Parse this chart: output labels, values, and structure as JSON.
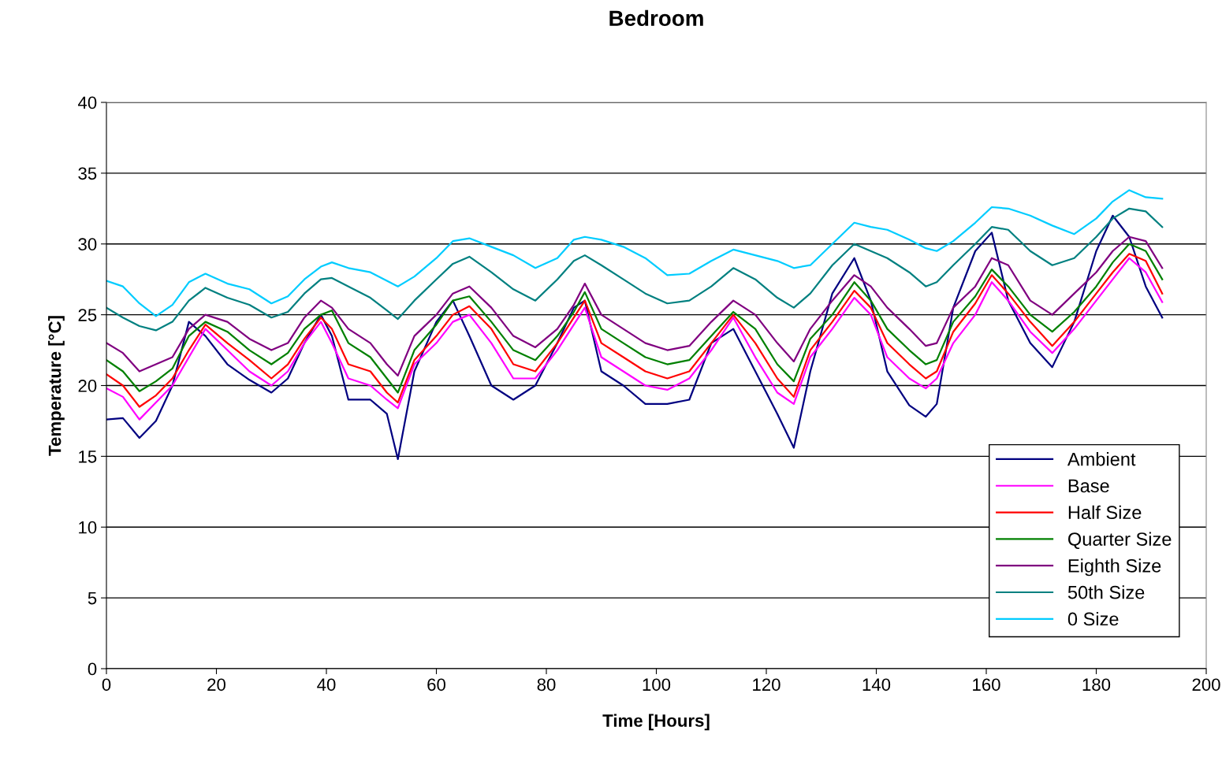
{
  "chart_data": {
    "type": "line",
    "title": "Bedroom",
    "xlabel": "Time [Hours]",
    "ylabel": "Temperature [°C]",
    "x": [
      0,
      3,
      6,
      9,
      12,
      15,
      18,
      22,
      26,
      30,
      33,
      36,
      39,
      41,
      44,
      48,
      51,
      53,
      56,
      60,
      63,
      66,
      70,
      74,
      78,
      82,
      85,
      87,
      90,
      94,
      98,
      102,
      106,
      110,
      114,
      118,
      122,
      125,
      128,
      132,
      136,
      139,
      142,
      146,
      149,
      151,
      154,
      158,
      161,
      164,
      168,
      172,
      176,
      180,
      183,
      186,
      189,
      192
    ],
    "xlim": [
      0,
      200
    ],
    "xticks": [
      0,
      20,
      40,
      60,
      80,
      100,
      120,
      140,
      160,
      180,
      200
    ],
    "ylim": [
      0,
      40
    ],
    "yticks": [
      0,
      5,
      10,
      15,
      20,
      25,
      30,
      35,
      40
    ],
    "grid": "y",
    "legend": "bottom right",
    "marker": "none",
    "line_style": "solid",
    "series": [
      {
        "name": "Ambient",
        "color": "#000080",
        "values": [
          17.6,
          17.7,
          16.3,
          17.5,
          20,
          24.5,
          23.5,
          21.5,
          20.4,
          19.5,
          20.5,
          23,
          25,
          23.5,
          19,
          19,
          18,
          14.8,
          21,
          24.5,
          26,
          23.5,
          20,
          19,
          20,
          23,
          25.5,
          26,
          21,
          20,
          18.7,
          18.7,
          19,
          23,
          24,
          21,
          18,
          15.6,
          21,
          26.5,
          29,
          26,
          21,
          18.6,
          17.8,
          18.7,
          25.5,
          29.5,
          30.8,
          26,
          23,
          21.3,
          24.5,
          29.5,
          32,
          30.5,
          27,
          24.8
        ]
      },
      {
        "name": "Base",
        "color": "#ff00ff",
        "values": [
          19.8,
          19.2,
          17.6,
          18.8,
          20,
          22,
          24,
          22.5,
          21,
          20,
          21,
          23,
          24.5,
          23,
          20.5,
          20,
          19,
          18.4,
          21.5,
          23,
          24.5,
          25,
          23,
          20.5,
          20.5,
          22.5,
          24.3,
          25.5,
          22,
          21,
          20,
          19.7,
          20.5,
          22.5,
          24.8,
          22,
          19.5,
          18.7,
          22,
          24,
          26.2,
          25,
          22,
          20.5,
          19.8,
          20.5,
          23,
          25,
          27.3,
          26,
          23.8,
          22.3,
          24,
          26,
          27.5,
          29,
          28,
          25.9
        ]
      },
      {
        "name": "Half Size",
        "color": "#ff0000",
        "values": [
          20.8,
          20,
          18.5,
          19.3,
          20.5,
          22.5,
          24.3,
          23,
          21.8,
          20.5,
          21.5,
          23.3,
          24.8,
          24,
          21.5,
          21,
          19.5,
          18.8,
          21.8,
          23.5,
          25,
          25.6,
          24,
          21.5,
          21,
          23,
          24.8,
          26,
          23,
          22,
          21,
          20.5,
          21,
          23,
          25,
          23,
          20.5,
          19.2,
          22.5,
          24.5,
          26.7,
          25.5,
          23,
          21.5,
          20.5,
          21,
          23.8,
          25.8,
          27.8,
          26.5,
          24.5,
          22.8,
          24.5,
          26.5,
          28,
          29.3,
          28.8,
          26.5
        ]
      },
      {
        "name": "Quarter Size",
        "color": "#008000",
        "values": [
          21.8,
          21,
          19.6,
          20.3,
          21.2,
          23.5,
          24.5,
          23.8,
          22.5,
          21.5,
          22.3,
          24,
          25,
          25.3,
          23,
          22,
          20.5,
          19.5,
          22.5,
          24.3,
          26,
          26.3,
          24.5,
          22.5,
          21.8,
          23.5,
          25.2,
          26.6,
          24,
          23,
          22,
          21.5,
          21.8,
          23.5,
          25.2,
          24,
          21.5,
          20.3,
          23.3,
          25,
          27.3,
          26,
          24,
          22.5,
          21.5,
          21.8,
          24.5,
          26.3,
          28.2,
          27,
          25,
          23.8,
          25.2,
          27,
          28.7,
          30,
          29.5,
          27.5
        ]
      },
      {
        "name": "Eighth Size",
        "color": "#800080",
        "values": [
          23,
          22.3,
          21,
          21.5,
          22,
          24,
          25,
          24.5,
          23.3,
          22.5,
          23,
          24.8,
          26,
          25.5,
          24,
          23,
          21.5,
          20.7,
          23.5,
          25,
          26.5,
          27,
          25.5,
          23.5,
          22.7,
          24,
          25.7,
          27.2,
          25,
          24,
          23,
          22.5,
          22.8,
          24.5,
          26,
          25,
          23,
          21.7,
          24,
          26,
          27.8,
          27,
          25.5,
          24,
          22.8,
          23,
          25.5,
          27,
          29,
          28.5,
          26,
          25,
          26.5,
          28,
          29.5,
          30.5,
          30.2,
          28.3
        ]
      },
      {
        "name": "50th Size",
        "color": "#008080",
        "values": [
          25.5,
          24.8,
          24.2,
          23.9,
          24.5,
          26,
          26.9,
          26.2,
          25.7,
          24.8,
          25.2,
          26.5,
          27.5,
          27.6,
          27,
          26.2,
          25.3,
          24.7,
          26,
          27.5,
          28.6,
          29.1,
          28,
          26.8,
          26,
          27.5,
          28.8,
          29.2,
          28.5,
          27.5,
          26.5,
          25.8,
          26,
          27,
          28.3,
          27.5,
          26.2,
          25.5,
          26.5,
          28.5,
          30,
          29.5,
          29,
          28,
          27,
          27.3,
          28.5,
          30,
          31.2,
          31,
          29.5,
          28.5,
          29,
          30.5,
          31.8,
          32.5,
          32.3,
          31.2
        ]
      },
      {
        "name": "0 Size",
        "color": "#00ccff",
        "values": [
          27.4,
          27,
          25.8,
          24.9,
          25.7,
          27.3,
          27.9,
          27.2,
          26.8,
          25.8,
          26.3,
          27.5,
          28.4,
          28.7,
          28.3,
          28,
          27.4,
          27,
          27.7,
          29,
          30.2,
          30.4,
          29.8,
          29.2,
          28.3,
          29,
          30.3,
          30.5,
          30.3,
          29.8,
          29,
          27.8,
          27.9,
          28.8,
          29.6,
          29.2,
          28.8,
          28.3,
          28.5,
          30,
          31.5,
          31.2,
          31,
          30.3,
          29.7,
          29.5,
          30.2,
          31.5,
          32.6,
          32.5,
          32,
          31.3,
          30.7,
          31.8,
          33,
          33.8,
          33.3,
          33.2
        ]
      }
    ]
  }
}
